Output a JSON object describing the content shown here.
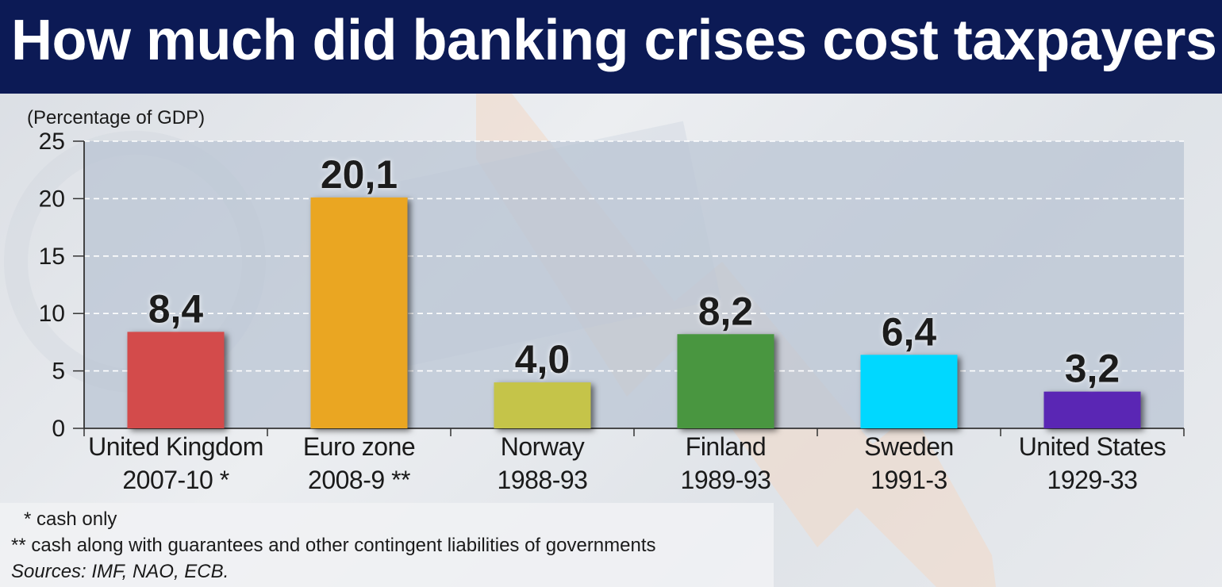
{
  "title": "How much did banking crises cost taxpayers",
  "footnotes": {
    "note1": "* cash only",
    "note2": "** cash along with guarantees and other contingent liabilities of governments",
    "sources": "Sources: IMF, NAO, ECB."
  },
  "colors": {
    "title_bar": "#0c1a55",
    "background": "#e6e8ec",
    "plot_area": "#b9c3d3"
  },
  "chart_data": {
    "type": "bar",
    "title": "How much did banking crises cost taxpayers",
    "ylabel": "(Percentage of GDP)",
    "xlabel": "",
    "ylim": [
      0,
      25
    ],
    "yticks": [
      0,
      5,
      10,
      15,
      20,
      25
    ],
    "grid": true,
    "categories": [
      {
        "name": "United Kingdom",
        "period": "2007-10 *"
      },
      {
        "name": "Euro zone",
        "period": "2008-9 **"
      },
      {
        "name": "Norway",
        "period": "1988-93"
      },
      {
        "name": "Finland",
        "period": "1989-93"
      },
      {
        "name": "Sweden",
        "period": "1991-3"
      },
      {
        "name": "United States",
        "period": "1929-33"
      }
    ],
    "values": [
      8.4,
      20.1,
      4.0,
      8.2,
      6.4,
      3.2
    ],
    "value_labels": [
      "8,4",
      "20,1",
      "4,0",
      "8,2",
      "6,4",
      "3,2"
    ],
    "bar_colors": [
      "#d34b4b",
      "#eaa621",
      "#c5c449",
      "#4a9640",
      "#00d8ff",
      "#5a28b4"
    ]
  }
}
